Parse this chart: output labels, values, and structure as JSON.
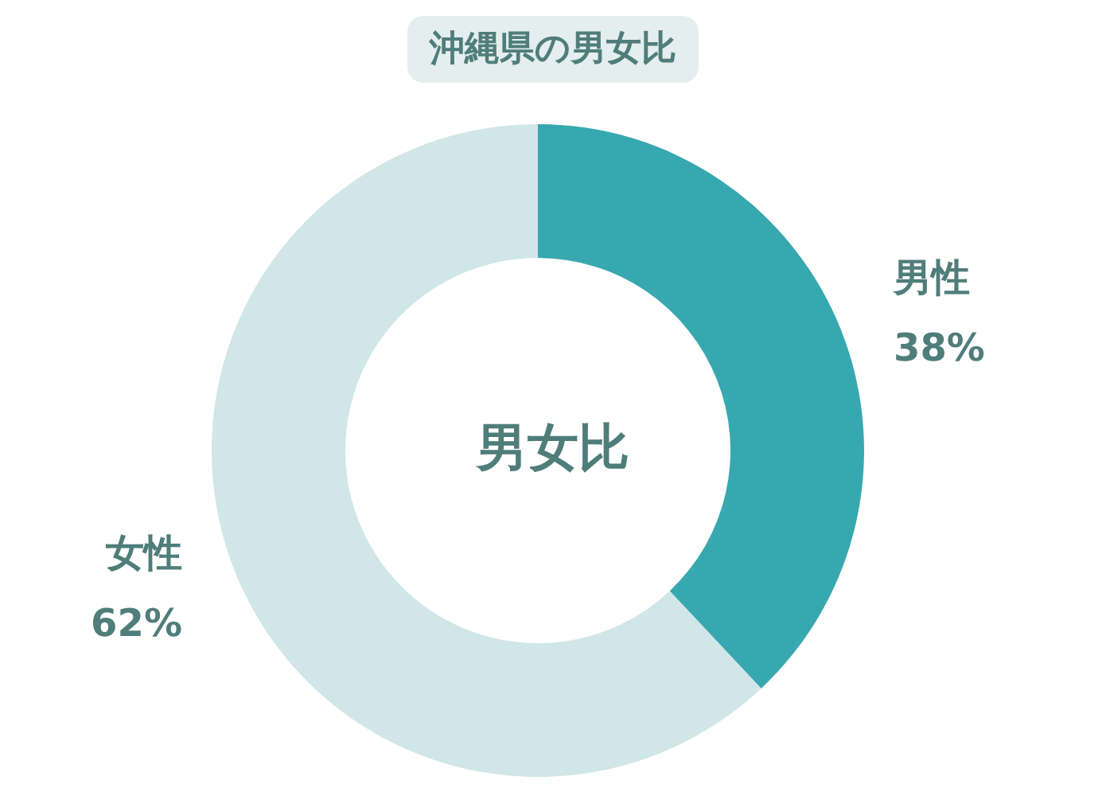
{
  "chart_data": {
    "type": "donut",
    "title": "沖縄県の男女比",
    "categories": [
      "男性",
      "女性"
    ],
    "values": [
      38,
      62
    ],
    "value_labels": [
      "38%",
      "62%"
    ],
    "colors": [
      "#38a8b0",
      "#d0e6e8"
    ],
    "annotations": [
      "男女比"
    ],
    "legend": false
  }
}
